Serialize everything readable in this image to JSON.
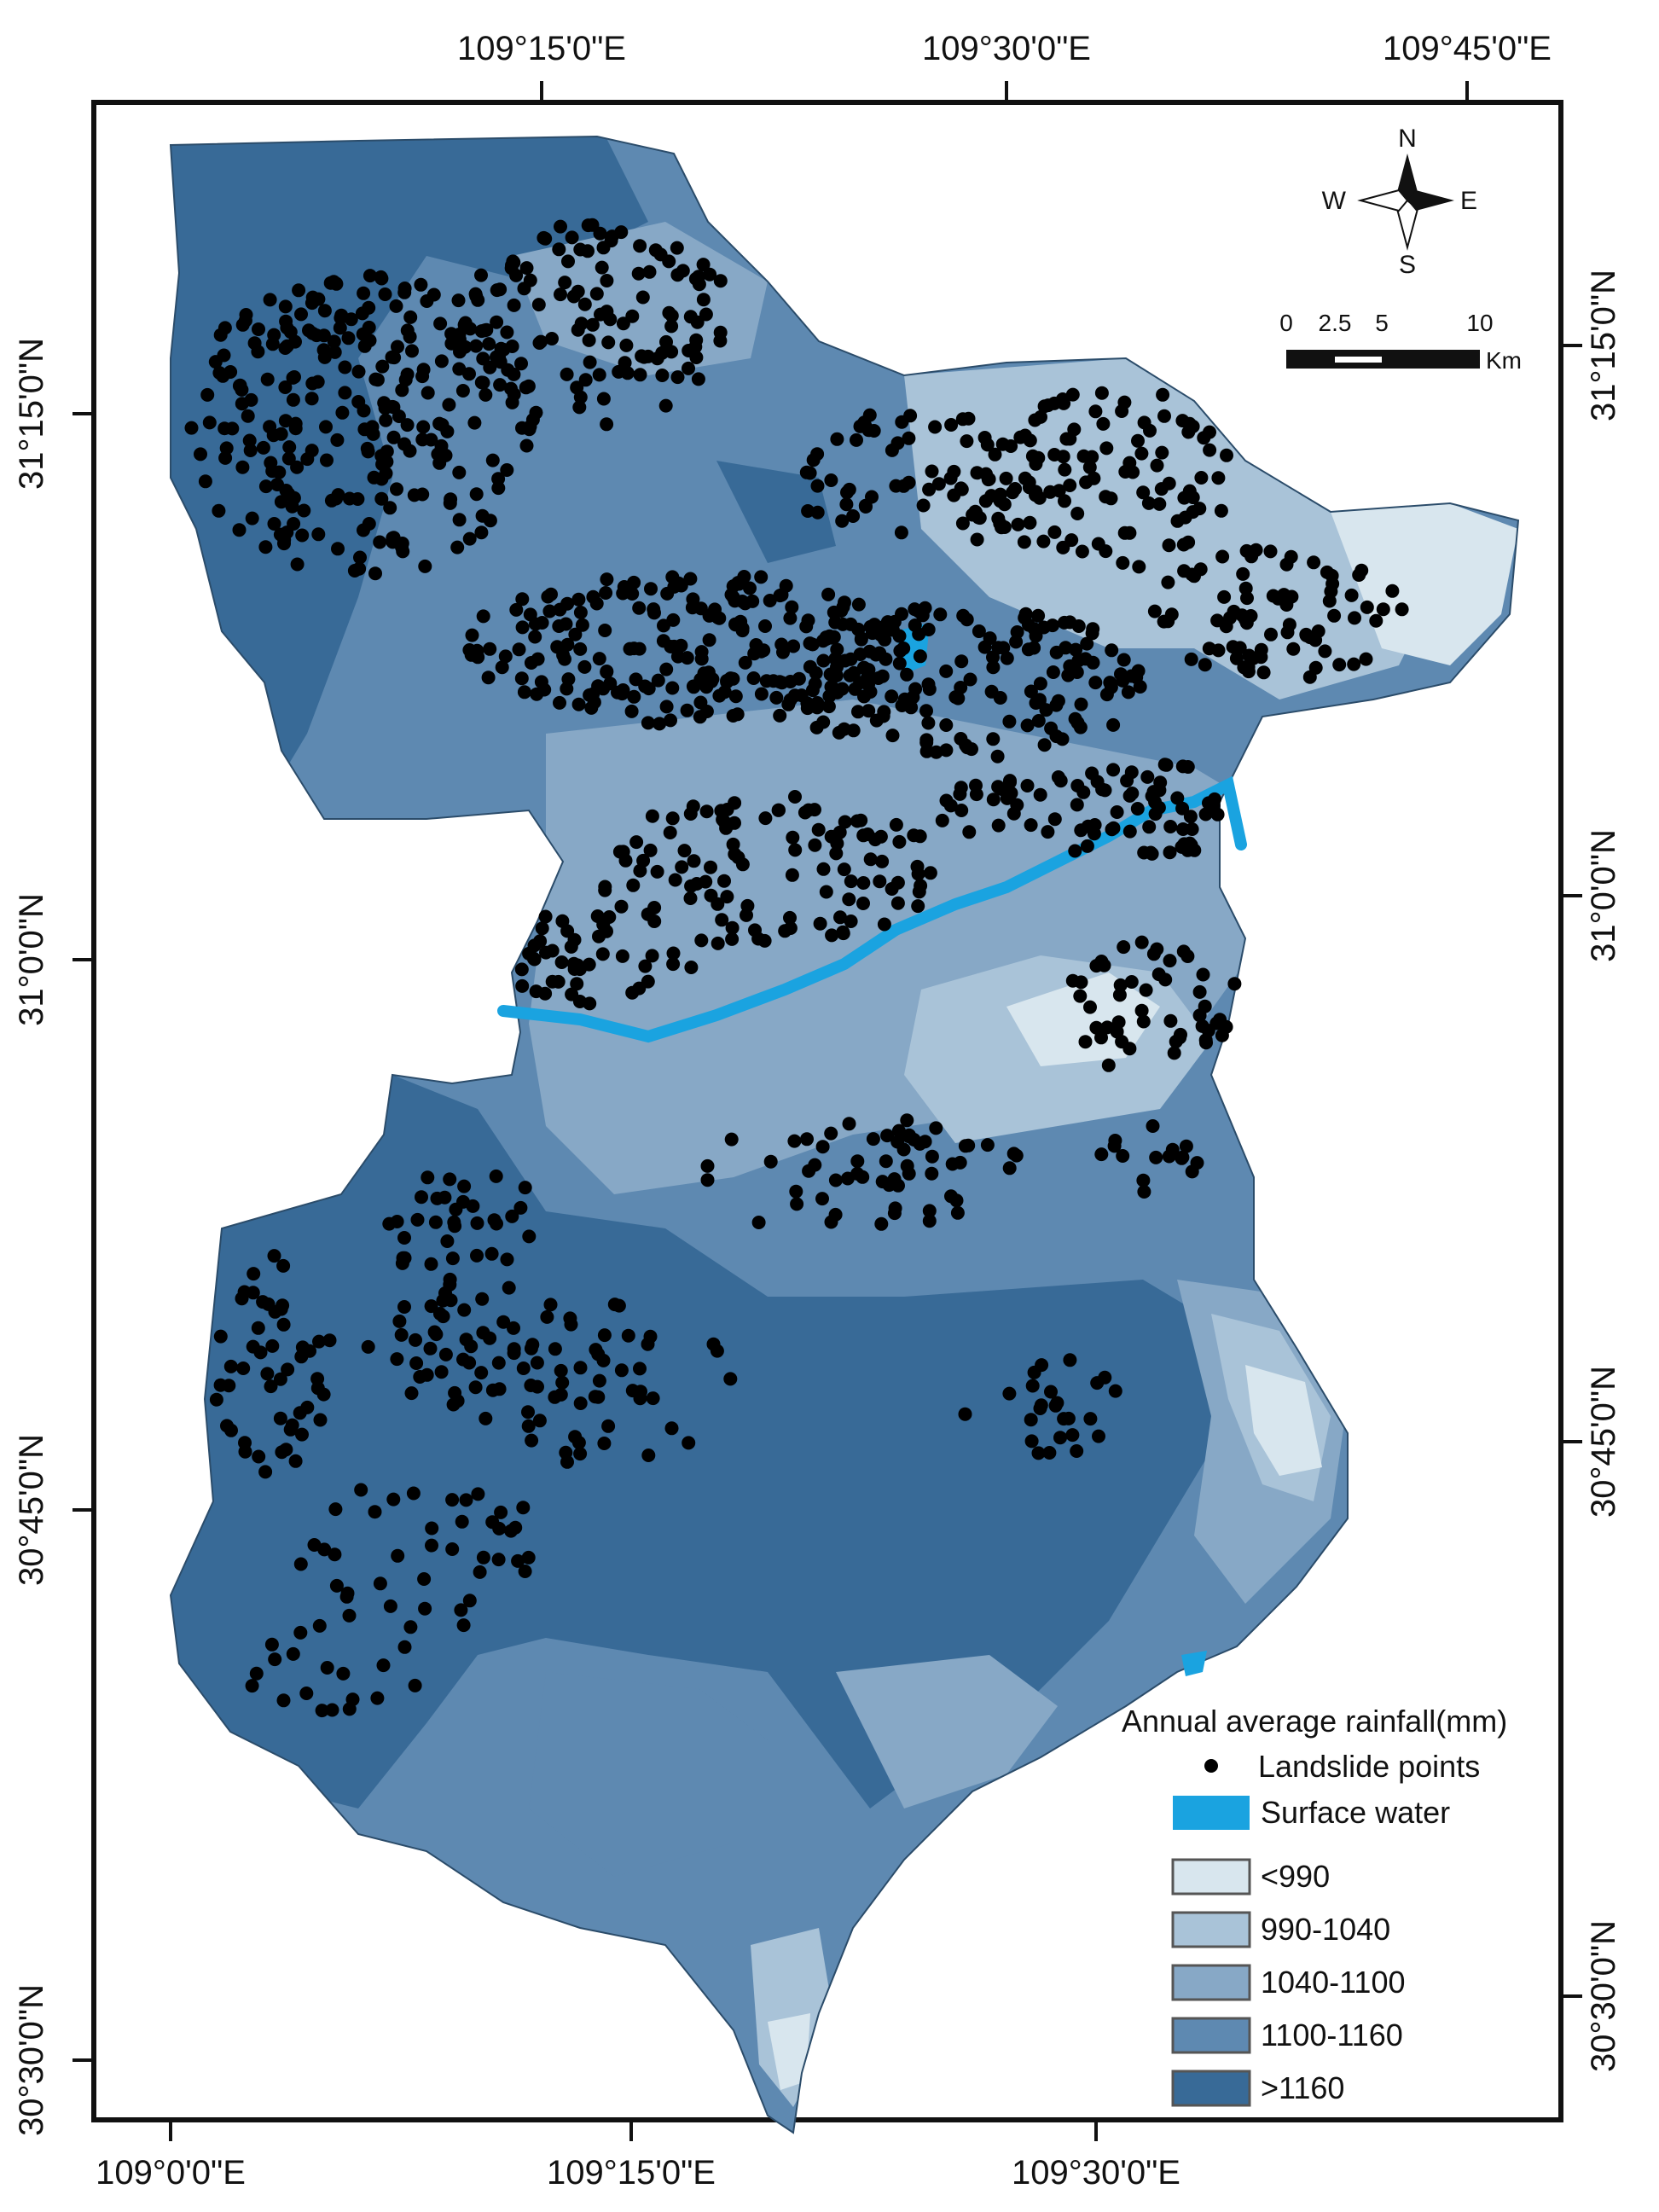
{
  "map": {
    "top_labels": [
      "109°15'0\"E",
      "109°30'0\"E",
      "109°45'0\"E"
    ],
    "bottom_labels": [
      "109°0'0\"E",
      "109°15'0\"E",
      "109°30'0\"E"
    ],
    "left_labels": [
      "31°15'0\"N",
      "31°0'0\"N",
      "30°45'0\"N",
      "30°30'0\"N"
    ],
    "right_labels": [
      "31°15'0\"N",
      "31°0'0\"N",
      "30°45'0\"N",
      "30°30'0\"N"
    ]
  },
  "compass": {
    "n": "N",
    "s": "S",
    "e": "E",
    "w": "W"
  },
  "scale_bar": {
    "ticks": [
      "0",
      "2.5",
      "5",
      "10"
    ],
    "unit": "Km"
  },
  "legend": {
    "title": "Annual average rainfall(mm)",
    "landslide_label": "Landslide points",
    "water_label": "Surface water",
    "classes": [
      {
        "label": "<990",
        "color": "#d8e6ee"
      },
      {
        "label": "990-1040",
        "color": "#a9c3d8"
      },
      {
        "label": "1040-1100",
        "color": "#87a8c6"
      },
      {
        "label": "1100-1160",
        "color": "#5e89b1"
      },
      {
        "label": ">1160",
        "color": "#386a97"
      }
    ],
    "water_color": "#1aa3e0",
    "point_color": "#000000"
  }
}
